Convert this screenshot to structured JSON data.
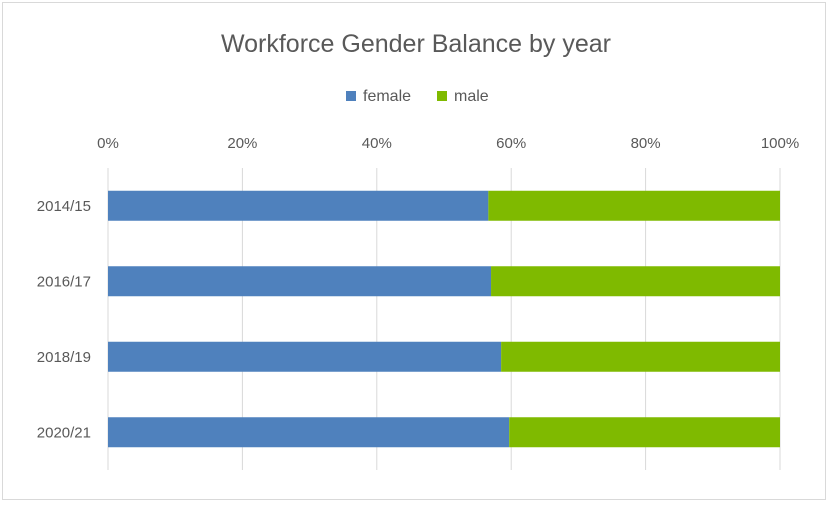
{
  "chart_data": {
    "type": "bar",
    "orientation": "horizontal",
    "stacked": "percent",
    "title": "Workforce Gender Balance by year",
    "categories": [
      "2014/15",
      "2016/17",
      "2018/19",
      "2020/21"
    ],
    "series": [
      {
        "name": "female",
        "color": "#4f81bd",
        "values": [
          56.6,
          57.0,
          58.5,
          59.7
        ]
      },
      {
        "name": "male",
        "color": "#7fba00",
        "values": [
          43.4,
          43.0,
          41.5,
          40.3
        ]
      }
    ],
    "xaxis": {
      "position": "top",
      "range": [
        0,
        100
      ],
      "ticks": [
        "0%",
        "20%",
        "40%",
        "60%",
        "80%",
        "100%"
      ]
    },
    "legend_position": "top",
    "grid": true,
    "xlabel": "",
    "ylabel": ""
  }
}
